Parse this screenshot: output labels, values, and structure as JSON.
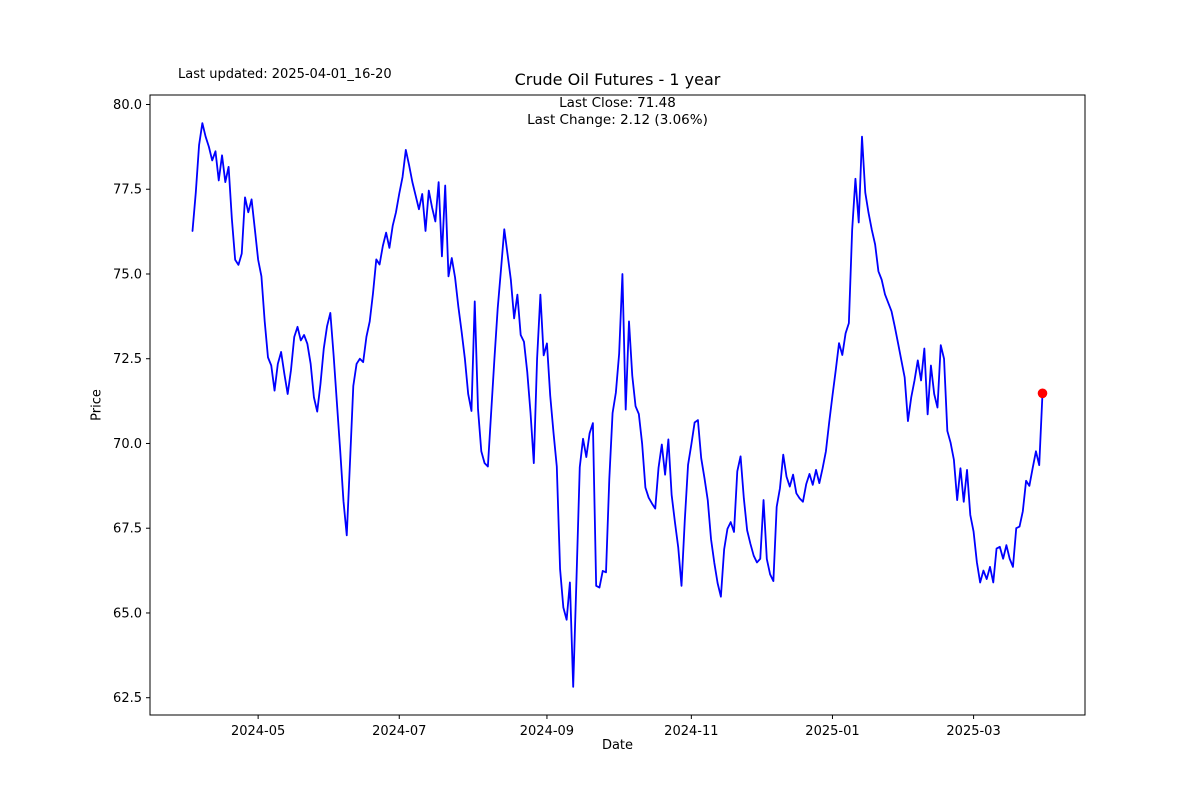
{
  "header": {
    "last_updated": "Last updated: 2025-04-01_16-20",
    "title": "Crude Oil Futures - 1 year",
    "annotation_line1": "Last Close: 71.48",
    "annotation_line2": "Last Change: 2.12 (3.06%)"
  },
  "chart_data": {
    "type": "line",
    "title": "Crude Oil Futures - 1 year",
    "xlabel": "Date",
    "ylabel": "Price",
    "legend": "none",
    "grid": false,
    "line_color": "#0000ff",
    "last_point_color": "#ff0000",
    "axis_color": "#000000",
    "last_close": 71.48,
    "last_change": 2.12,
    "last_change_pct": "3.06%",
    "ylim": [
      61.99,
      80.28
    ],
    "yticks": [
      62.5,
      65.0,
      67.5,
      70.0,
      72.5,
      75.0,
      77.5,
      80.0
    ],
    "xticks": [
      {
        "label": "2024-05",
        "index": 20
      },
      {
        "label": "2024-07",
        "index": 63
      },
      {
        "label": "2024-09",
        "index": 108
      },
      {
        "label": "2024-11",
        "index": 152
      },
      {
        "label": "2025-01",
        "index": 195
      },
      {
        "label": "2025-03",
        "index": 238
      }
    ],
    "x_start_label": "2024-04",
    "x_end_label": "2025-04-01",
    "values": [
      76.27,
      77.4,
      78.8,
      79.45,
      79.05,
      78.75,
      78.35,
      78.62,
      77.76,
      78.5,
      77.71,
      78.16,
      76.62,
      75.42,
      75.27,
      75.6,
      77.26,
      76.82,
      77.2,
      76.32,
      75.42,
      74.93,
      73.6,
      72.54,
      72.3,
      71.56,
      72.35,
      72.7,
      72.05,
      71.46,
      72.16,
      73.14,
      73.44,
      73.04,
      73.2,
      72.94,
      72.35,
      71.36,
      70.94,
      71.76,
      72.8,
      73.46,
      73.85,
      72.6,
      71.2,
      69.8,
      68.3,
      67.29,
      69.47,
      71.7,
      72.35,
      72.5,
      72.4,
      73.15,
      73.6,
      74.43,
      75.43,
      75.28,
      75.83,
      76.22,
      75.77,
      76.42,
      76.82,
      77.37,
      77.86,
      78.66,
      78.21,
      77.71,
      77.31,
      76.91,
      77.36,
      76.27,
      77.46,
      76.96,
      76.55,
      77.71,
      75.52,
      77.61,
      74.93,
      75.47,
      74.9,
      74.04,
      73.3,
      72.5,
      71.46,
      70.96,
      74.19,
      71.01,
      69.77,
      69.42,
      69.32,
      70.91,
      72.5,
      73.99,
      75.13,
      76.32,
      75.58,
      74.83,
      73.69,
      74.39,
      73.2,
      73.0,
      72.11,
      70.9,
      69.42,
      72.5,
      74.39,
      72.6,
      72.95,
      71.41,
      70.32,
      69.32,
      66.3,
      65.16,
      64.8,
      65.9,
      62.82,
      66.0,
      69.3,
      70.14,
      69.6,
      70.3,
      70.6,
      65.8,
      65.75,
      66.24,
      66.2,
      68.95,
      70.9,
      71.5,
      72.65,
      75.0,
      71.0,
      73.6,
      72.0,
      71.1,
      70.87,
      70.0,
      68.7,
      68.4,
      68.23,
      68.08,
      69.28,
      69.97,
      69.08,
      70.12,
      68.48,
      67.68,
      66.94,
      65.8,
      67.73,
      69.37,
      69.97,
      70.62,
      70.69,
      69.57,
      68.98,
      68.33,
      67.18,
      66.48,
      65.88,
      65.48,
      66.88,
      67.48,
      67.68,
      67.39,
      69.18,
      69.62,
      68.38,
      67.44,
      67.04,
      66.69,
      66.49,
      66.6,
      68.33,
      66.59,
      66.14,
      65.94,
      68.13,
      68.68,
      69.67,
      69.02,
      68.73,
      69.08,
      68.53,
      68.38,
      68.28,
      68.8,
      69.1,
      68.78,
      69.22,
      68.83,
      69.27,
      69.77,
      70.62,
      71.41,
      72.16,
      72.96,
      72.61,
      73.25,
      73.55,
      76.3,
      77.81,
      76.52,
      79.05,
      77.4,
      76.8,
      76.3,
      75.87,
      75.08,
      74.83,
      74.4,
      74.15,
      73.9,
      73.44,
      72.95,
      72.45,
      71.95,
      70.66,
      71.36,
      71.86,
      72.45,
      71.86,
      72.8,
      70.86,
      72.3,
      71.46,
      71.06,
      72.9,
      72.5,
      70.37,
      70.02,
      69.52,
      68.33,
      69.27,
      68.28,
      69.22,
      67.89,
      67.4,
      66.5,
      65.9,
      66.25,
      66.0,
      66.36,
      65.9,
      66.9,
      66.95,
      66.6,
      67.0,
      66.6,
      66.36,
      67.5,
      67.55,
      68.0,
      68.9,
      68.75,
      69.27,
      69.77,
      69.36,
      71.48
    ]
  }
}
